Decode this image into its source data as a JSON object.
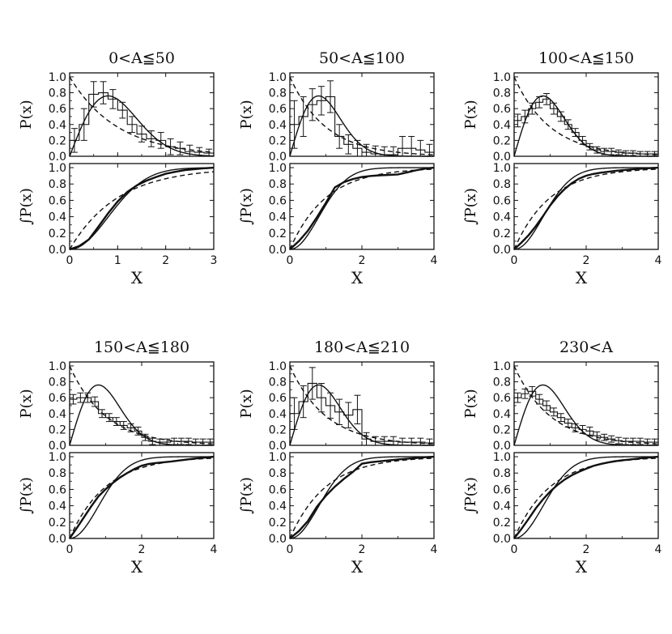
{
  "figure": {
    "colors": {
      "ink": "#111111",
      "background": "#ffffff"
    }
  },
  "chart_data": [
    {
      "type": "line",
      "title": "0<A≦50",
      "top": {
        "ylabel": "P(x)",
        "ylim": [
          0,
          1.05
        ],
        "yticks": [
          "0.0",
          "0.2",
          "0.4",
          "0.6",
          "0.8",
          "1.0"
        ],
        "hist": {
          "x": [
            0.0,
            0.2,
            0.4,
            0.6,
            0.8,
            1.0,
            1.2,
            1.4,
            1.6,
            1.8,
            2.0,
            2.2,
            2.4,
            2.6,
            2.8
          ],
          "y": [
            0.2,
            0.4,
            0.78,
            0.8,
            0.72,
            0.58,
            0.4,
            0.28,
            0.22,
            0.2,
            0.12,
            0.1,
            0.06,
            0.05,
            0.04
          ],
          "err": [
            0.15,
            0.2,
            0.16,
            0.14,
            0.12,
            0.1,
            0.1,
            0.1,
            0.1,
            0.1,
            0.1,
            0.08,
            0.08,
            0.06,
            0.05
          ]
        },
        "series": [
          {
            "name": "theory-solid",
            "shape": "rayleigh"
          },
          {
            "name": "theory-dashed",
            "shape": "exponential"
          }
        ]
      },
      "bottom": {
        "ylabel": "∫P(x)",
        "ylim": [
          0,
          1.05
        ],
        "yticks": [
          "0.0",
          "0.2",
          "0.4",
          "0.6",
          "0.8",
          "1.0"
        ]
      },
      "xlabel": "X",
      "xlim": [
        0,
        3
      ],
      "xticks": [
        "0",
        "1",
        "2",
        "3"
      ]
    },
    {
      "type": "line",
      "title": "50<A≦100",
      "top": {
        "ylabel": "P(x)",
        "ylim": [
          0,
          1.05
        ],
        "yticks": [
          "0.0",
          "0.2",
          "0.4",
          "0.6",
          "0.8",
          "1.0"
        ],
        "hist": {
          "x": [
            0.0,
            0.25,
            0.5,
            0.75,
            1.0,
            1.25,
            1.5,
            1.75,
            2.0,
            2.25,
            2.5,
            2.75,
            3.0,
            3.25,
            3.5,
            3.75
          ],
          "y": [
            0.4,
            0.5,
            0.65,
            0.7,
            0.75,
            0.25,
            0.15,
            0.1,
            0.05,
            0.03,
            0.02,
            0.02,
            0.1,
            0.1,
            0.08,
            0.05
          ],
          "err": [
            0.3,
            0.25,
            0.2,
            0.18,
            0.2,
            0.15,
            0.12,
            0.1,
            0.1,
            0.1,
            0.1,
            0.1,
            0.15,
            0.15,
            0.12,
            0.1
          ]
        },
        "series": [
          {
            "name": "theory-solid",
            "shape": "rayleigh"
          },
          {
            "name": "theory-dashed",
            "shape": "exponential"
          }
        ]
      },
      "bottom": {
        "ylabel": "∫P(x)",
        "ylim": [
          0,
          1.05
        ],
        "yticks": [
          "0.0",
          "0.2",
          "0.4",
          "0.6",
          "0.8",
          "1.0"
        ]
      },
      "xlabel": "X",
      "xlim": [
        0,
        4
      ],
      "xticks": [
        "0",
        "2",
        "4"
      ]
    },
    {
      "type": "line",
      "title": "100<A≦150",
      "top": {
        "ylabel": "P(x)",
        "ylim": [
          0,
          1.05
        ],
        "yticks": [
          "0.0",
          "0.2",
          "0.4",
          "0.6",
          "0.8",
          "1.0"
        ],
        "hist": {
          "x": [
            0.0,
            0.2,
            0.4,
            0.6,
            0.8,
            1.0,
            1.2,
            1.4,
            1.6,
            1.8,
            2.0,
            2.2,
            2.4,
            2.6,
            2.8,
            3.0,
            3.2,
            3.4,
            3.6,
            3.8
          ],
          "y": [
            0.45,
            0.5,
            0.6,
            0.68,
            0.72,
            0.6,
            0.5,
            0.4,
            0.3,
            0.2,
            0.12,
            0.08,
            0.06,
            0.06,
            0.05,
            0.04,
            0.04,
            0.03,
            0.03,
            0.03
          ],
          "err": [
            0.08,
            0.08,
            0.07,
            0.07,
            0.07,
            0.07,
            0.06,
            0.06,
            0.05,
            0.05,
            0.04,
            0.04,
            0.04,
            0.04,
            0.03,
            0.03,
            0.03,
            0.03,
            0.03,
            0.03
          ]
        },
        "series": [
          {
            "name": "theory-solid",
            "shape": "rayleigh"
          },
          {
            "name": "theory-dashed",
            "shape": "exponential"
          }
        ]
      },
      "bottom": {
        "ylabel": "∫P(x)",
        "ylim": [
          0,
          1.05
        ],
        "yticks": [
          "0.0",
          "0.2",
          "0.4",
          "0.6",
          "0.8",
          "1.0"
        ]
      },
      "xlabel": "X",
      "xlim": [
        0,
        4
      ],
      "xticks": [
        "0",
        "2",
        "4"
      ]
    },
    {
      "type": "line",
      "title": "150<A≦180",
      "top": {
        "ylabel": "P(x)",
        "ylim": [
          0,
          1.05
        ],
        "yticks": [
          "0.0",
          "0.2",
          "0.4",
          "0.6",
          "0.8",
          "1.0"
        ],
        "hist": {
          "x": [
            0.0,
            0.2,
            0.4,
            0.6,
            0.8,
            1.0,
            1.2,
            1.4,
            1.6,
            1.8,
            2.0,
            2.2,
            2.4,
            2.6,
            2.8,
            3.0,
            3.2,
            3.4,
            3.6,
            3.8
          ],
          "y": [
            0.58,
            0.6,
            0.6,
            0.55,
            0.4,
            0.35,
            0.3,
            0.25,
            0.22,
            0.18,
            0.1,
            0.05,
            0.04,
            0.04,
            0.05,
            0.05,
            0.05,
            0.04,
            0.04,
            0.04
          ],
          "err": [
            0.06,
            0.06,
            0.06,
            0.06,
            0.05,
            0.05,
            0.05,
            0.05,
            0.05,
            0.05,
            0.04,
            0.04,
            0.04,
            0.04,
            0.04,
            0.04,
            0.04,
            0.04,
            0.04,
            0.04
          ]
        },
        "series": [
          {
            "name": "theory-solid",
            "shape": "rayleigh"
          },
          {
            "name": "theory-dashed",
            "shape": "exponential"
          }
        ]
      },
      "bottom": {
        "ylabel": "∫P(x)",
        "ylim": [
          0,
          1.05
        ],
        "yticks": [
          "0.0",
          "0.2",
          "0.4",
          "0.6",
          "0.8",
          "1.0"
        ]
      },
      "xlabel": "X",
      "xlim": [
        0,
        4
      ],
      "xticks": [
        "0",
        "2",
        "4"
      ]
    },
    {
      "type": "line",
      "title": "180<A≦210",
      "top": {
        "ylabel": "P(x)",
        "ylim": [
          0,
          1.05
        ],
        "yticks": [
          "0.0",
          "0.2",
          "0.4",
          "0.6",
          "0.8",
          "1.0"
        ],
        "hist": {
          "x": [
            0.0,
            0.25,
            0.5,
            0.75,
            1.0,
            1.25,
            1.5,
            1.75,
            2.0,
            2.25,
            2.5,
            2.75,
            3.0,
            3.25,
            3.5,
            3.75
          ],
          "y": [
            0.4,
            0.55,
            0.78,
            0.6,
            0.5,
            0.42,
            0.38,
            0.45,
            0.08,
            0.05,
            0.05,
            0.05,
            0.04,
            0.04,
            0.04,
            0.03
          ],
          "err": [
            0.2,
            0.2,
            0.2,
            0.18,
            0.16,
            0.16,
            0.16,
            0.18,
            0.08,
            0.06,
            0.06,
            0.06,
            0.05,
            0.05,
            0.05,
            0.05
          ]
        },
        "series": [
          {
            "name": "theory-solid",
            "shape": "rayleigh"
          },
          {
            "name": "theory-dashed",
            "shape": "exponential"
          }
        ]
      },
      "bottom": {
        "ylabel": "∫P(x)",
        "ylim": [
          0,
          1.05
        ],
        "yticks": [
          "0.0",
          "0.2",
          "0.4",
          "0.6",
          "0.8",
          "1.0"
        ]
      },
      "xlabel": "X",
      "xlim": [
        0,
        4
      ],
      "xticks": [
        "0",
        "2",
        "4"
      ]
    },
    {
      "type": "line",
      "title": "230<A",
      "top": {
        "ylabel": "P(x)",
        "ylim": [
          0,
          1.05
        ],
        "yticks": [
          "0.0",
          "0.2",
          "0.4",
          "0.6",
          "0.8",
          "1.0"
        ],
        "hist": {
          "x": [
            0.0,
            0.2,
            0.4,
            0.6,
            0.8,
            1.0,
            1.2,
            1.4,
            1.6,
            1.8,
            2.0,
            2.2,
            2.4,
            2.6,
            2.8,
            3.0,
            3.2,
            3.4,
            3.6,
            3.8
          ],
          "y": [
            0.6,
            0.65,
            0.68,
            0.58,
            0.5,
            0.42,
            0.35,
            0.28,
            0.22,
            0.2,
            0.18,
            0.12,
            0.1,
            0.08,
            0.06,
            0.05,
            0.05,
            0.05,
            0.04,
            0.04
          ],
          "err": [
            0.06,
            0.06,
            0.06,
            0.06,
            0.06,
            0.05,
            0.05,
            0.05,
            0.05,
            0.05,
            0.05,
            0.05,
            0.04,
            0.04,
            0.04,
            0.04,
            0.04,
            0.04,
            0.04,
            0.04
          ]
        },
        "series": [
          {
            "name": "theory-solid",
            "shape": "rayleigh"
          },
          {
            "name": "theory-dashed",
            "shape": "exponential"
          }
        ]
      },
      "bottom": {
        "ylabel": "∫P(x)",
        "ylim": [
          0,
          1.05
        ],
        "yticks": [
          "0.0",
          "0.2",
          "0.4",
          "0.6",
          "0.8",
          "1.0"
        ]
      },
      "xlabel": "X",
      "xlim": [
        0,
        4
      ],
      "xticks": [
        "0",
        "2",
        "4"
      ]
    }
  ]
}
